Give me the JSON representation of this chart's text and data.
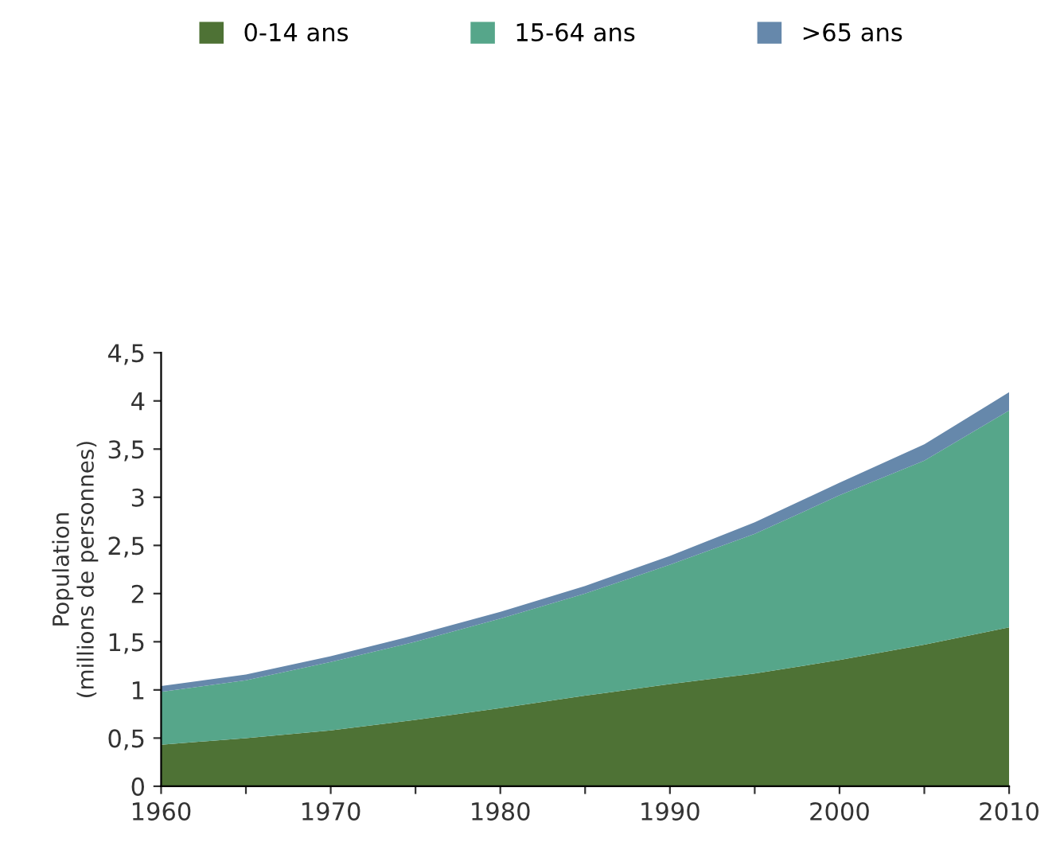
{
  "chart_data": {
    "type": "area",
    "stacked": true,
    "ylabel": "Population\n(millions de personnes)",
    "x": [
      1960,
      1965,
      1970,
      1975,
      1980,
      1985,
      1990,
      1995,
      2000,
      2005,
      2010
    ],
    "series": [
      {
        "name": "0-14 ans",
        "color": "#4e7235",
        "values": [
          0.43,
          0.5,
          0.58,
          0.69,
          0.81,
          0.94,
          1.06,
          1.17,
          1.31,
          1.47,
          1.65
        ]
      },
      {
        "name": "15-64 ans",
        "color": "#56a68a",
        "values": [
          0.55,
          0.6,
          0.71,
          0.81,
          0.93,
          1.06,
          1.24,
          1.45,
          1.71,
          1.91,
          2.25
        ]
      },
      {
        "name": ">65 ans",
        "color": "#6688ab",
        "values": [
          0.06,
          0.06,
          0.06,
          0.07,
          0.07,
          0.08,
          0.09,
          0.12,
          0.13,
          0.17,
          0.19
        ]
      }
    ],
    "xlim": [
      1960,
      2010
    ],
    "xticks": [
      1960,
      {
        "value": 1965,
        "label": null
      },
      1970,
      {
        "value": 1975,
        "label": null
      },
      1980,
      {
        "value": 1985,
        "label": null
      },
      1990,
      {
        "value": 1995,
        "label": null
      },
      2000,
      {
        "value": 2005,
        "label": null
      },
      2010
    ],
    "ylim": [
      0,
      4.5
    ],
    "yticks": [
      0,
      {
        "value": 0.5,
        "label": "0,5"
      },
      1,
      {
        "value": 1.5,
        "label": "1,5"
      },
      2,
      {
        "value": 2.5,
        "label": "2,5"
      },
      3,
      {
        "value": 3.5,
        "label": "3,5"
      },
      4,
      {
        "value": 4.5,
        "label": "4,5"
      }
    ],
    "grid": false,
    "legend": "top"
  }
}
